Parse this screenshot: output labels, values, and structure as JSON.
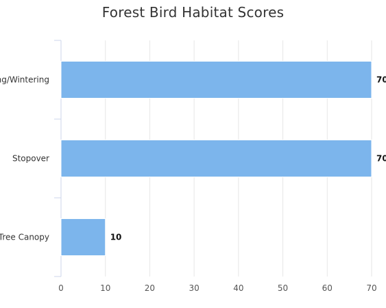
{
  "chart_data": {
    "type": "bar",
    "orientation": "horizontal",
    "title": "Forest Bird Habitat Scores",
    "categories": [
      "Breeding/Wintering",
      "Stopover",
      "Tree Canopy"
    ],
    "values": [
      70,
      70,
      10
    ],
    "xlim": [
      0,
      70
    ],
    "xticks": [
      0,
      10,
      20,
      30,
      40,
      50,
      60,
      70
    ],
    "xlabel": "",
    "ylabel": "",
    "grid": "vertical",
    "legend": "none",
    "bar_color": "#7cb5ec"
  }
}
